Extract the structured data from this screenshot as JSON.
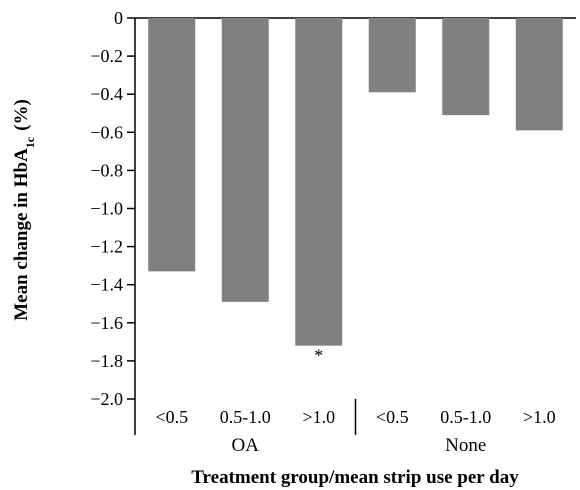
{
  "chart_data": {
    "type": "bar",
    "ylabel_main": "Mean change in HbA",
    "ylabel_sub": "1c",
    "ylabel_unit": "(%)",
    "xlabel": "Treatment group/mean strip use per day",
    "ylim": [
      -2.0,
      0
    ],
    "yticks": [
      0,
      -0.2,
      -0.4,
      -0.6,
      -0.8,
      -1.0,
      -1.2,
      -1.4,
      -1.6,
      -1.8,
      -2.0
    ],
    "ytick_labels": [
      "0",
      "−0.2",
      "−0.4",
      "−0.6",
      "−0.8",
      "−1.0",
      "−1.2",
      "−1.4",
      "−1.6",
      "−1.8",
      "−2.0"
    ],
    "groups": [
      {
        "name": "OA",
        "categories": [
          "<0.5",
          "0.5-1.0",
          ">1.0"
        ],
        "values": [
          -1.33,
          -1.49,
          -1.72
        ],
        "annotations": [
          "",
          "",
          "*"
        ]
      },
      {
        "name": "None",
        "categories": [
          "<0.5",
          "0.5-1.0",
          ">1.0"
        ],
        "values": [
          -0.39,
          -0.51,
          -0.59
        ],
        "annotations": [
          "",
          "",
          ""
        ]
      }
    ],
    "bar_color": "#808080"
  }
}
